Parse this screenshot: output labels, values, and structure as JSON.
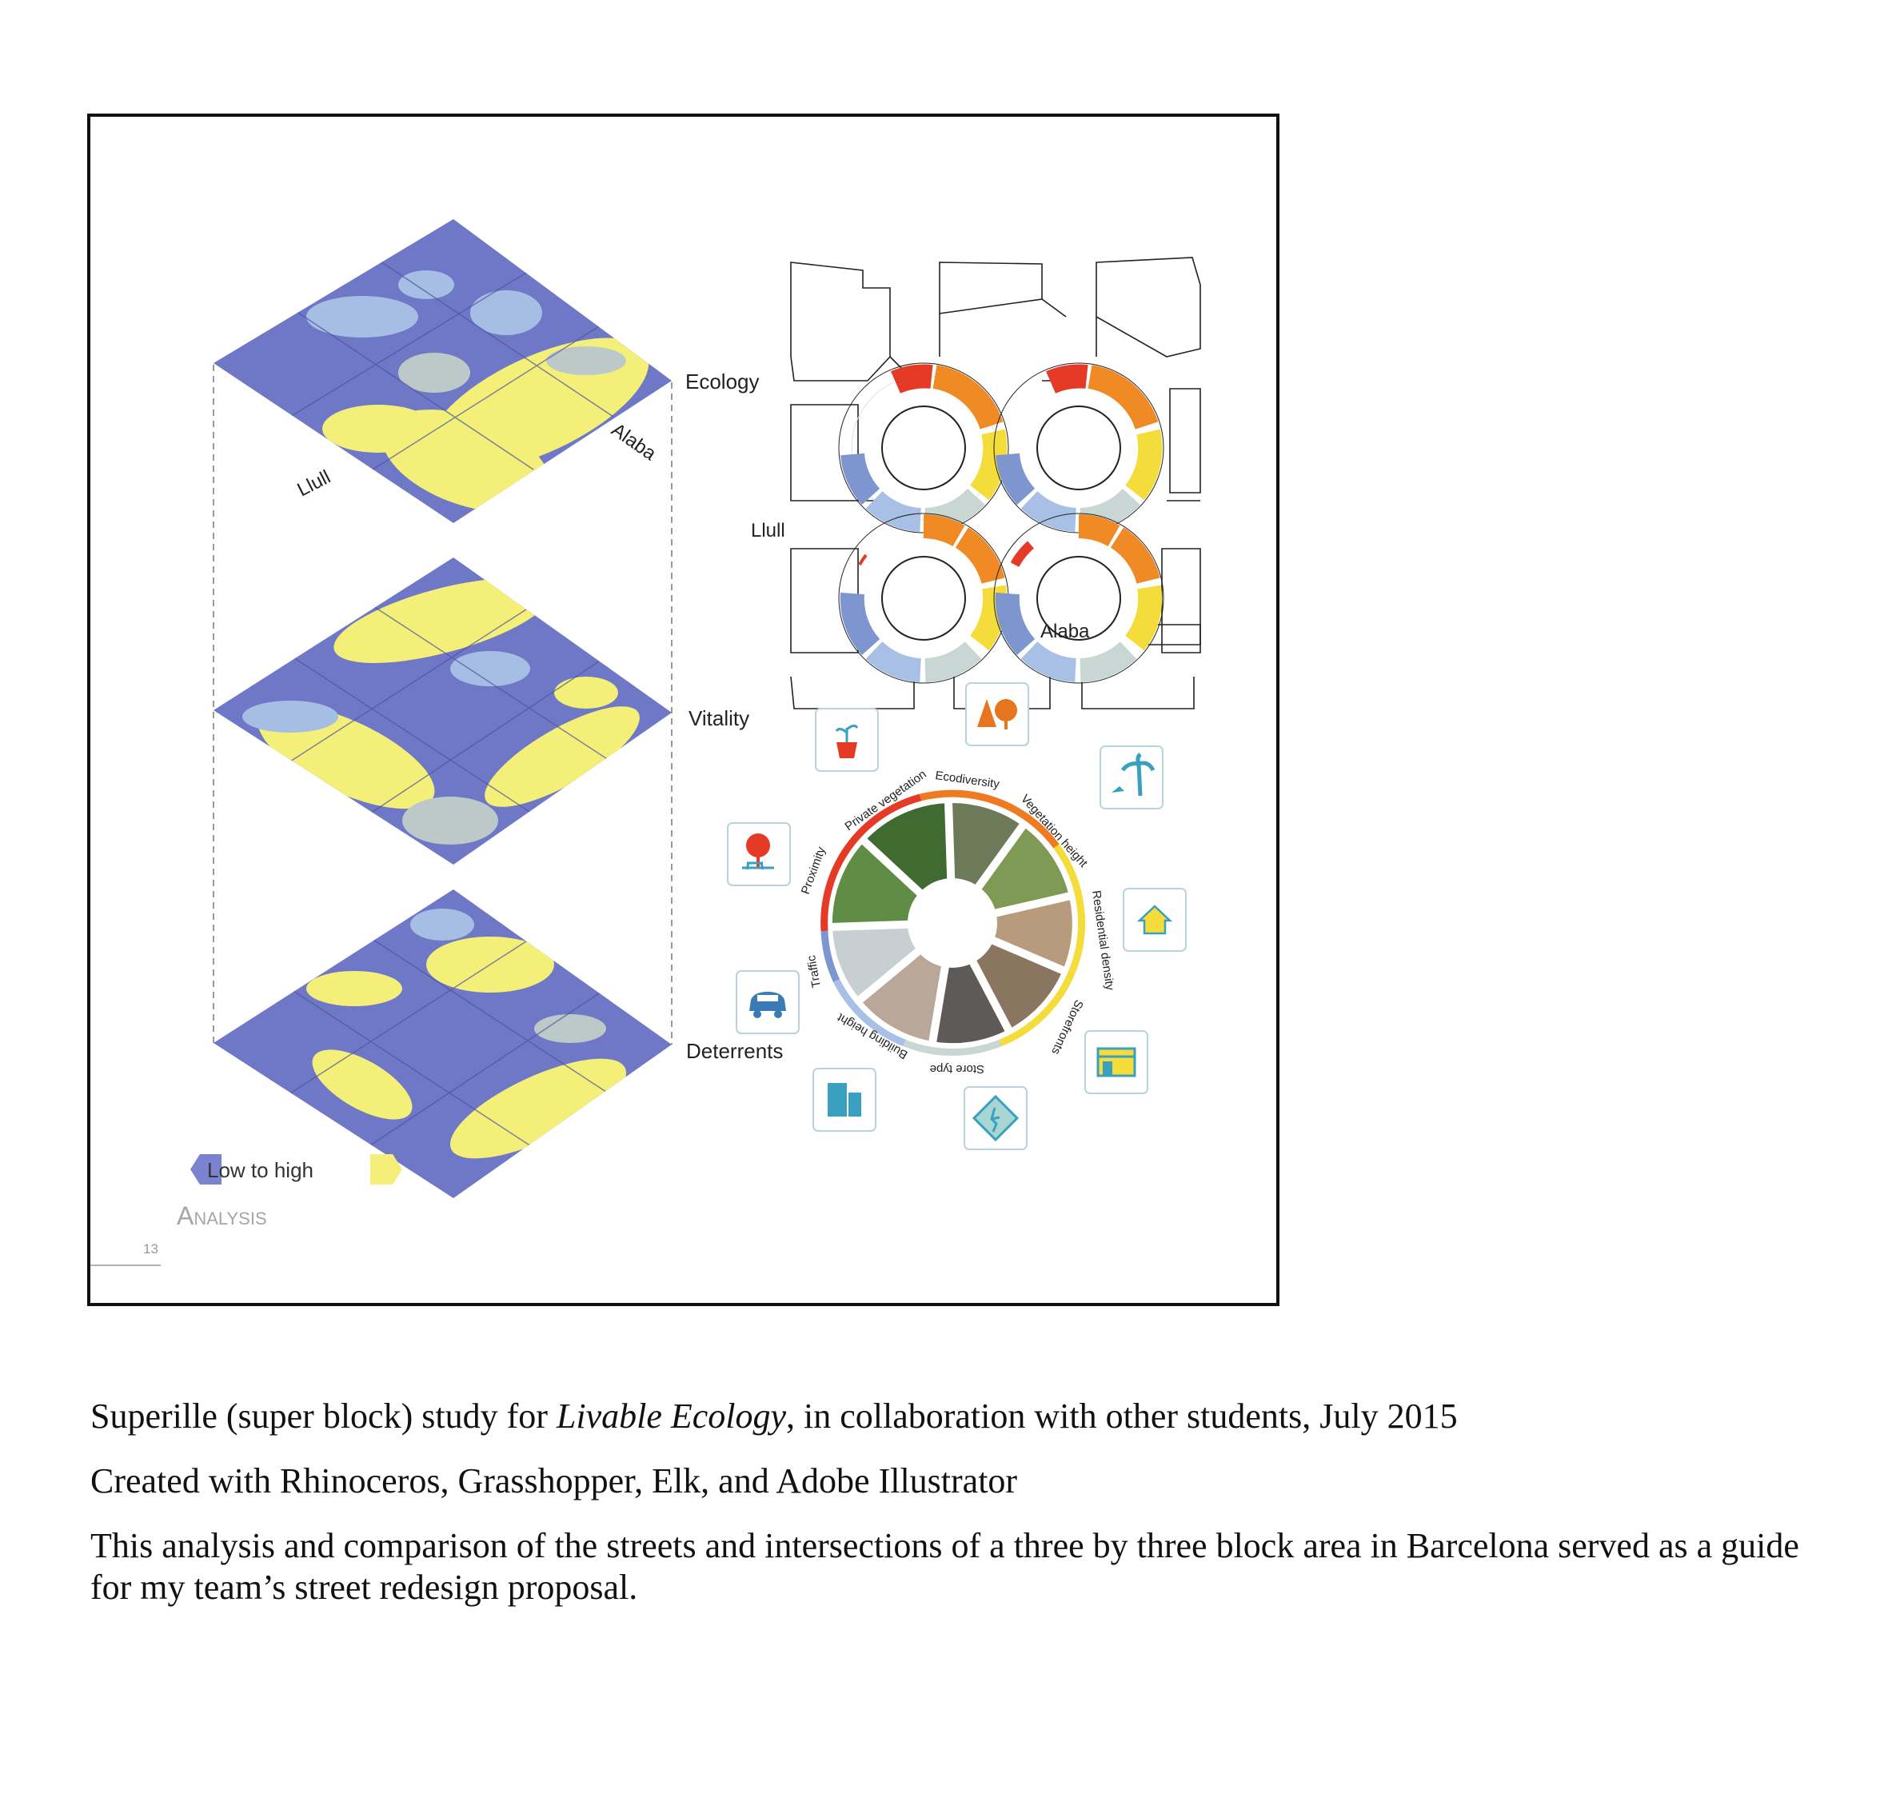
{
  "layers": [
    {
      "id": "ecology",
      "label": "Ecology"
    },
    {
      "id": "vitality",
      "label": "Vitality"
    },
    {
      "id": "deterrents",
      "label": "Deterrents"
    }
  ],
  "street_labels": {
    "llull": "Llull",
    "alaba": "Alaba"
  },
  "legend": {
    "label": "Low to high",
    "low_color": "#7a83cf",
    "high_color": "#f5ef7a"
  },
  "section": {
    "title": "Analysis",
    "page_number": "13"
  },
  "wheel_segments": [
    {
      "label": "Ecodiversity",
      "color": "#ee7a22",
      "icon": "trees-icon"
    },
    {
      "label": "Vegetation height",
      "color": "#ee7a22",
      "icon": "palm-tree-icon"
    },
    {
      "label": "Residential density",
      "color": "#f4dc3a",
      "icon": "house-icon"
    },
    {
      "label": "Storefronts",
      "color": "#f4dc3a",
      "icon": "storefront-icon"
    },
    {
      "label": "Store type",
      "color": "#c9d7d4",
      "icon": "pedestrian-sign-icon"
    },
    {
      "label": "Building height",
      "color": "#a9c0e6",
      "icon": "building-icon"
    },
    {
      "label": "Traffic",
      "color": "#7e96d0",
      "icon": "car-icon"
    },
    {
      "label": "Proximity",
      "color": "#e53b26",
      "icon": "park-tree-icon"
    },
    {
      "label": "Private vegetation",
      "color": "#e53b26",
      "icon": "potted-plant-icon"
    }
  ],
  "colors": {
    "low": "#6f78c6",
    "mid": "#a6bee3",
    "high": "#f4ef78",
    "grey": "#bcc9c8",
    "red": "#e53b26",
    "orange": "#ef8a24",
    "yellow": "#f4dc3a",
    "lightblue": "#a9c0e6",
    "blue": "#7e96d0"
  },
  "caption": {
    "line1_prefix": "Superille (super block) study for ",
    "line1_italic": "Livable Ecology",
    "line1_suffix": ", in collaboration with other students, July 2015",
    "line2": "Created with Rhinoceros, Grasshopper, Elk, and Adobe Illustrator",
    "line3": "This analysis and comparison of the streets and intersections of a three by three block area in Barcelona served as a guide for my team’s street redesign proposal."
  }
}
